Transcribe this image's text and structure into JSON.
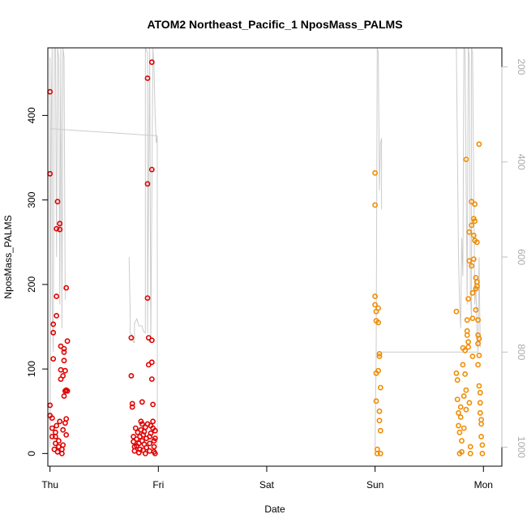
{
  "chart_data": {
    "type": "scatter",
    "title": "ATOM2 Northeast_Pacific_1 NposMass_PALMS",
    "xlabel": "Date",
    "ylabel": "NposMass_PALMS",
    "x_ticks": [
      "Thu",
      "Fri",
      "Sat",
      "Sun",
      "Mon"
    ],
    "xlim": [
      -0.02,
      4.17
    ],
    "ylim": [
      -15,
      480
    ],
    "y_ticks": [
      0,
      100,
      200,
      300,
      400
    ],
    "right_axis": {
      "label": "",
      "ticks": [
        200,
        400,
        600,
        800,
        1000
      ],
      "lim_top_to_bottom": [
        160,
        1040
      ],
      "color": "#bfbfbf",
      "description": "pressure altitude trace (inverted scale)"
    },
    "grid": false,
    "legend": "none",
    "colors": {
      "series1": "#e00000",
      "series2": "#f08c00",
      "trace": "#cccccc"
    },
    "series": [
      {
        "color": "#e00000",
        "points": [
          [
            0.0,
            428
          ],
          [
            0.0,
            331
          ],
          [
            0.0,
            57
          ],
          [
            0.0,
            45
          ],
          [
            0.02,
            42
          ],
          [
            0.02,
            30
          ],
          [
            0.02,
            20
          ],
          [
            0.03,
            112
          ],
          [
            0.03,
            143
          ],
          [
            0.03,
            153
          ],
          [
            0.04,
            5
          ],
          [
            0.05,
            12
          ],
          [
            0.05,
            20
          ],
          [
            0.05,
            25
          ],
          [
            0.06,
            33
          ],
          [
            0.06,
            186
          ],
          [
            0.06,
            163
          ],
          [
            0.06,
            266
          ],
          [
            0.07,
            298
          ],
          [
            0.07,
            2
          ],
          [
            0.08,
            8
          ],
          [
            0.08,
            15
          ],
          [
            0.09,
            38
          ],
          [
            0.09,
            265
          ],
          [
            0.09,
            272
          ],
          [
            0.1,
            127
          ],
          [
            0.1,
            88
          ],
          [
            0.1,
            99
          ],
          [
            0.11,
            0
          ],
          [
            0.11,
            5
          ],
          [
            0.12,
            92
          ],
          [
            0.12,
            10
          ],
          [
            0.12,
            28
          ],
          [
            0.13,
            110
          ],
          [
            0.13,
            120
          ],
          [
            0.13,
            124
          ],
          [
            0.13,
            68
          ],
          [
            0.14,
            36
          ],
          [
            0.14,
            98
          ],
          [
            0.14,
            74
          ],
          [
            0.15,
            75
          ],
          [
            0.15,
            22
          ],
          [
            0.15,
            41
          ],
          [
            0.15,
            196
          ],
          [
            0.16,
            133
          ],
          [
            0.16,
            74
          ],
          [
            0.75,
            137
          ],
          [
            0.75,
            92
          ],
          [
            0.76,
            59
          ],
          [
            0.76,
            55
          ],
          [
            0.77,
            20
          ],
          [
            0.77,
            14
          ],
          [
            0.78,
            8
          ],
          [
            0.78,
            3
          ],
          [
            0.79,
            30
          ],
          [
            0.8,
            17
          ],
          [
            0.8,
            9
          ],
          [
            0.81,
            25
          ],
          [
            0.82,
            1
          ],
          [
            0.82,
            12
          ],
          [
            0.83,
            20
          ],
          [
            0.83,
            5
          ],
          [
            0.84,
            38
          ],
          [
            0.84,
            28
          ],
          [
            0.85,
            35
          ],
          [
            0.85,
            61
          ],
          [
            0.85,
            15
          ],
          [
            0.86,
            22
          ],
          [
            0.86,
            4
          ],
          [
            0.87,
            11
          ],
          [
            0.87,
            26
          ],
          [
            0.88,
            31
          ],
          [
            0.88,
            0
          ],
          [
            0.89,
            18
          ],
          [
            0.89,
            7
          ],
          [
            0.9,
            35
          ],
          [
            0.9,
            319
          ],
          [
            0.9,
            444
          ],
          [
            0.9,
            184
          ],
          [
            0.91,
            137
          ],
          [
            0.91,
            105
          ],
          [
            0.92,
            3
          ],
          [
            0.92,
            12
          ],
          [
            0.92,
            20
          ],
          [
            0.93,
            24
          ],
          [
            0.93,
            33
          ],
          [
            0.94,
            463
          ],
          [
            0.94,
            336
          ],
          [
            0.94,
            134
          ],
          [
            0.94,
            108
          ],
          [
            0.94,
            88
          ],
          [
            0.95,
            58
          ],
          [
            0.95,
            38
          ],
          [
            0.95,
            30
          ],
          [
            0.96,
            2
          ],
          [
            0.96,
            8
          ],
          [
            0.96,
            15
          ],
          [
            0.97,
            27
          ],
          [
            0.97,
            18
          ],
          [
            0.97,
            0
          ]
        ]
      },
      {
        "color": "#f08c00",
        "points": [
          [
            3.0,
            332
          ],
          [
            3.0,
            294
          ],
          [
            3.0,
            186
          ],
          [
            3.0,
            176
          ],
          [
            3.01,
            168
          ],
          [
            3.01,
            157
          ],
          [
            3.01,
            95
          ],
          [
            3.01,
            62
          ],
          [
            3.02,
            5
          ],
          [
            3.02,
            0
          ],
          [
            3.03,
            172
          ],
          [
            3.03,
            98
          ],
          [
            3.03,
            155
          ],
          [
            3.04,
            118
          ],
          [
            3.04,
            115
          ],
          [
            3.04,
            50
          ],
          [
            3.04,
            39
          ],
          [
            3.05,
            78
          ],
          [
            3.05,
            27
          ],
          [
            3.05,
            0
          ],
          [
            3.75,
            168
          ],
          [
            3.75,
            95
          ],
          [
            3.76,
            87
          ],
          [
            3.76,
            64
          ],
          [
            3.77,
            48
          ],
          [
            3.77,
            33
          ],
          [
            3.78,
            25
          ],
          [
            3.78,
            0
          ],
          [
            3.79,
            55
          ],
          [
            3.79,
            43
          ],
          [
            3.8,
            15
          ],
          [
            3.8,
            2
          ],
          [
            3.81,
            125
          ],
          [
            3.81,
            105
          ],
          [
            3.82,
            68
          ],
          [
            3.82,
            30
          ],
          [
            3.83,
            122
          ],
          [
            3.83,
            94
          ],
          [
            3.84,
            348
          ],
          [
            3.84,
            75
          ],
          [
            3.84,
            52
          ],
          [
            3.85,
            158
          ],
          [
            3.85,
            145
          ],
          [
            3.85,
            140
          ],
          [
            3.86,
            132
          ],
          [
            3.86,
            126
          ],
          [
            3.86,
            183
          ],
          [
            3.87,
            228
          ],
          [
            3.87,
            262
          ],
          [
            3.87,
            60
          ],
          [
            3.88,
            8
          ],
          [
            3.88,
            0
          ],
          [
            3.89,
            270
          ],
          [
            3.89,
            298
          ],
          [
            3.89,
            222
          ],
          [
            3.9,
            190
          ],
          [
            3.9,
            160
          ],
          [
            3.9,
            115
          ],
          [
            3.91,
            278
          ],
          [
            3.91,
            258
          ],
          [
            3.91,
            230
          ],
          [
            3.92,
            295
          ],
          [
            3.92,
            275
          ],
          [
            3.92,
            252
          ],
          [
            3.93,
            208
          ],
          [
            3.93,
            195
          ],
          [
            3.93,
            170
          ],
          [
            3.94,
            203
          ],
          [
            3.94,
            198
          ],
          [
            3.94,
            250
          ],
          [
            3.95,
            158
          ],
          [
            3.95,
            140
          ],
          [
            3.95,
            130
          ],
          [
            3.95,
            105
          ],
          [
            3.96,
            366
          ],
          [
            3.96,
            136
          ],
          [
            3.96,
            116
          ],
          [
            3.96,
            80
          ],
          [
            3.97,
            72
          ],
          [
            3.97,
            60
          ],
          [
            3.97,
            48
          ],
          [
            3.98,
            40
          ],
          [
            3.98,
            35
          ],
          [
            3.98,
            20
          ],
          [
            3.99,
            10
          ],
          [
            3.99,
            0
          ]
        ]
      }
    ]
  }
}
